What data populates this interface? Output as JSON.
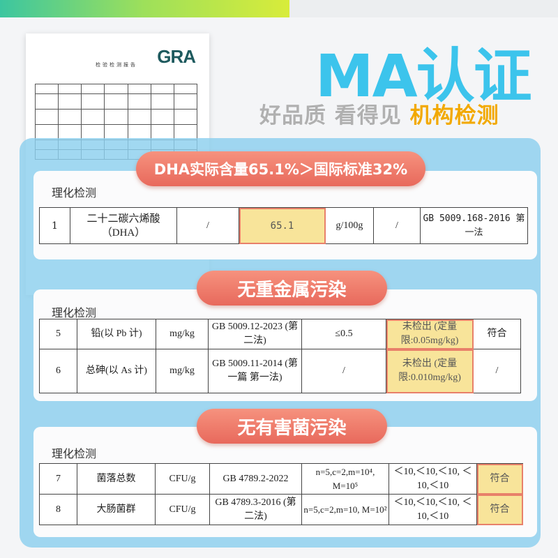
{
  "header": {
    "title": "MA认证",
    "slogan_gray": "好品质 看得见",
    "slogan_accent": "机构检测"
  },
  "report": {
    "logo": "GRA",
    "title": "检验检测报告"
  },
  "section1": {
    "badge": "DHA实际含量65.1%＞国际标准32%",
    "label": "理化检测",
    "row": {
      "no": "1",
      "item": "二十二碳六烯酸（DHA）",
      "unit_pre": "/",
      "result": "65.1",
      "unit": "g/100g",
      "limit": "/",
      "method": "GB 5009.168-2016 第一法"
    }
  },
  "section2": {
    "badge": "无重金属污染",
    "label": "理化检测",
    "rows": [
      {
        "no": "5",
        "item": "铅(以 Pb 计)",
        "unit": "mg/kg",
        "method": "GB 5009.12-2023 (第二法)",
        "limit": "≤0.5",
        "result": "未检出 (定量限:0.05mg/kg)",
        "verdict": "符合"
      },
      {
        "no": "6",
        "item": "总砷(以 As 计)",
        "unit": "mg/kg",
        "method": "GB 5009.11-2014 (第一篇 第一法)",
        "limit": "/",
        "result": "未检出 (定量限:0.010mg/kg)",
        "verdict": "/"
      }
    ]
  },
  "section3": {
    "badge": "无有害菌污染",
    "label": "理化检测",
    "rows": [
      {
        "no": "7",
        "item": "菌落总数",
        "unit": "CFU/g",
        "method": "GB 4789.2-2022",
        "limit": "n=5,c=2,m=10⁴, M=10⁵",
        "result": "＜10,＜10,＜10, ＜10,＜10",
        "verdict": "符合"
      },
      {
        "no": "8",
        "item": "大肠菌群",
        "unit": "CFU/g",
        "method": "GB 4789.3-2016 (第二法)",
        "limit": "n=5,c=2,m=10, M=10²",
        "result": "＜10,＜10,＜10, ＜10,＜10",
        "verdict": "符合"
      }
    ]
  },
  "colors": {
    "title": "#3cc4ec",
    "accent": "#f2a900",
    "badge": "#ec7464",
    "panel": "#8cd0ee",
    "highlight": "#f8e49a"
  }
}
